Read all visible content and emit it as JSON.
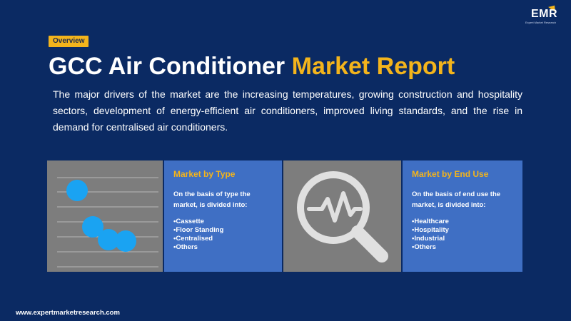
{
  "brand": {
    "logo_text": "EMR",
    "logo_subtitle": "Expert Market Research"
  },
  "tag": "Overview",
  "title": {
    "part1": "GCC Air Conditioner",
    "part2": "Market Report"
  },
  "description": "The major drivers of the market are the increasing temperatures, growing construction and hospitality sectors, development of energy-efficient air conditioners, improved living standards, and the rise in demand for centralised air conditioners.",
  "panels": {
    "type": {
      "heading": "Market by Type",
      "basis": "On the basis of type the market, is divided into:",
      "items": [
        "Cassette",
        "Floor Standing",
        "Centralised",
        "Others"
      ]
    },
    "end_use": {
      "heading": "Market by End Use",
      "basis": "On the basis of  end use the market, is divided into:",
      "items": [
        "Healthcare",
        "Hospitality",
        "Industrial",
        "Others"
      ]
    }
  },
  "icons": {
    "decorative_chart": "scatter-chart-icon",
    "analysis": "magnifier-pulse-icon"
  },
  "colors": {
    "background": "#0b2a63",
    "accent": "#f3b41c",
    "panel_blue": "#3f6fc4",
    "panel_gray": "#7d7d7d",
    "dot_blue": "#1aa3f2"
  },
  "footer": "www.expertmarketresearch.com"
}
